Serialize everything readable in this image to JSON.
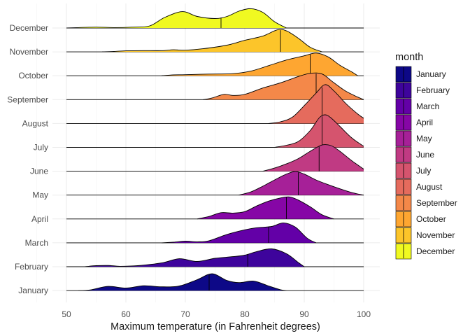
{
  "chart_data": {
    "type": "ridgeline",
    "xlabel": "Maximum temperature (in Fahrenheit degrees)",
    "ylabel": "",
    "xlim": [
      50,
      100
    ],
    "x_ticks": [
      50,
      60,
      70,
      80,
      90,
      100
    ],
    "grid": true,
    "legend": {
      "title": "month",
      "position": "right"
    },
    "series": [
      {
        "name": "January",
        "color": "#0D0887",
        "median": 74,
        "density": [
          [
            52,
            0
          ],
          [
            54,
            0.03
          ],
          [
            57,
            0.2
          ],
          [
            60,
            0.12
          ],
          [
            63,
            0.23
          ],
          [
            66,
            0.18
          ],
          [
            69,
            0.22
          ],
          [
            72,
            0.52
          ],
          [
            74.5,
            0.8
          ],
          [
            77,
            0.48
          ],
          [
            79,
            0.38
          ],
          [
            81.5,
            0.45
          ],
          [
            84,
            0.22
          ],
          [
            86,
            0.04
          ],
          [
            87,
            0
          ]
        ]
      },
      {
        "name": "February",
        "color": "#3E049C",
        "median": 80.5,
        "density": [
          [
            53,
            0
          ],
          [
            55,
            0.05
          ],
          [
            57,
            0.06
          ],
          [
            59,
            0.02
          ],
          [
            62,
            0.05
          ],
          [
            66,
            0.18
          ],
          [
            69,
            0.38
          ],
          [
            72,
            0.25
          ],
          [
            75,
            0.4
          ],
          [
            78,
            0.48
          ],
          [
            80,
            0.55
          ],
          [
            82,
            0.72
          ],
          [
            84.5,
            0.85
          ],
          [
            87,
            0.62
          ],
          [
            89,
            0.2
          ],
          [
            90,
            0
          ]
        ]
      },
      {
        "name": "March",
        "color": "#6300A7",
        "median": 84,
        "density": [
          [
            66,
            0
          ],
          [
            68,
            0.03
          ],
          [
            70,
            0.08
          ],
          [
            72,
            0.05
          ],
          [
            74,
            0.1
          ],
          [
            77,
            0.4
          ],
          [
            80,
            0.62
          ],
          [
            82,
            0.72
          ],
          [
            84.5,
            0.78
          ],
          [
            86.5,
            0.95
          ],
          [
            88.5,
            0.75
          ],
          [
            90.5,
            0.22
          ],
          [
            92,
            0
          ]
        ]
      },
      {
        "name": "April",
        "color": "#8606A6",
        "median": 87,
        "density": [
          [
            72,
            0
          ],
          [
            74,
            0.12
          ],
          [
            76,
            0.3
          ],
          [
            78,
            0.28
          ],
          [
            80,
            0.35
          ],
          [
            82,
            0.62
          ],
          [
            84,
            0.85
          ],
          [
            86,
            1.0
          ],
          [
            87.5,
            1.05
          ],
          [
            89,
            0.9
          ],
          [
            91,
            0.58
          ],
          [
            93,
            0.2
          ],
          [
            95,
            0
          ]
        ]
      },
      {
        "name": "May",
        "color": "#A62098",
        "median": 89,
        "density": [
          [
            79,
            0
          ],
          [
            81,
            0.15
          ],
          [
            83,
            0.42
          ],
          [
            85,
            0.72
          ],
          [
            87,
            1.0
          ],
          [
            88.5,
            1.12
          ],
          [
            90,
            1.0
          ],
          [
            92,
            0.72
          ],
          [
            94,
            0.5
          ],
          [
            96,
            0.3
          ],
          [
            98,
            0.12
          ],
          [
            100,
            0
          ]
        ]
      },
      {
        "name": "June",
        "color": "#C03A83",
        "median": 92.5,
        "density": [
          [
            83,
            0
          ],
          [
            85,
            0.15
          ],
          [
            87,
            0.35
          ],
          [
            89,
            0.6
          ],
          [
            91,
            0.95
          ],
          [
            93,
            1.25
          ],
          [
            94.5,
            1.22
          ],
          [
            96,
            0.95
          ],
          [
            98,
            0.5
          ],
          [
            100,
            0.1
          ]
        ]
      },
      {
        "name": "July",
        "color": "#D5546E",
        "median": 93,
        "density": [
          [
            85,
            0
          ],
          [
            87,
            0.1
          ],
          [
            89,
            0.28
          ],
          [
            91,
            0.8
          ],
          [
            92.5,
            1.4
          ],
          [
            93.5,
            1.55
          ],
          [
            94.5,
            1.4
          ],
          [
            96,
            1.0
          ],
          [
            98,
            0.45
          ],
          [
            100,
            0.05
          ]
        ]
      },
      {
        "name": "August",
        "color": "#E56B5D",
        "median": 93,
        "density": [
          [
            84,
            0
          ],
          [
            86,
            0.08
          ],
          [
            88,
            0.3
          ],
          [
            90,
            0.85
          ],
          [
            92,
            1.45
          ],
          [
            93.5,
            1.85
          ],
          [
            95,
            1.55
          ],
          [
            97,
            0.95
          ],
          [
            99,
            0.45
          ],
          [
            100,
            0.25
          ]
        ]
      },
      {
        "name": "September",
        "color": "#F48849",
        "median": 92,
        "density": [
          [
            73,
            0
          ],
          [
            74.5,
            0.08
          ],
          [
            76.5,
            0.25
          ],
          [
            78,
            0.2
          ],
          [
            80,
            0.25
          ],
          [
            83,
            0.55
          ],
          [
            86,
            0.8
          ],
          [
            89,
            1.1
          ],
          [
            91,
            1.25
          ],
          [
            93,
            1.22
          ],
          [
            95,
            0.8
          ],
          [
            97,
            0.4
          ],
          [
            99,
            0.12
          ],
          [
            100,
            0
          ]
        ]
      },
      {
        "name": "October",
        "color": "#FEA631",
        "median": 91,
        "density": [
          [
            66,
            0
          ],
          [
            68,
            0.04
          ],
          [
            70,
            0.05
          ],
          [
            74,
            0.08
          ],
          [
            78,
            0.1
          ],
          [
            81,
            0.22
          ],
          [
            84,
            0.48
          ],
          [
            87,
            0.75
          ],
          [
            90,
            0.95
          ],
          [
            92,
            1.08
          ],
          [
            94,
            0.9
          ],
          [
            96,
            0.5
          ],
          [
            98,
            0.18
          ],
          [
            99,
            0
          ]
        ]
      },
      {
        "name": "November",
        "color": "#FCC52A",
        "median": 86,
        "density": [
          [
            56,
            0
          ],
          [
            58,
            0.02
          ],
          [
            60,
            0.05
          ],
          [
            63,
            0.06
          ],
          [
            66,
            0.06
          ],
          [
            68,
            0.1
          ],
          [
            70,
            0.08
          ],
          [
            73,
            0.15
          ],
          [
            77,
            0.32
          ],
          [
            80,
            0.55
          ],
          [
            83,
            0.75
          ],
          [
            85.5,
            1.05
          ],
          [
            87,
            1.0
          ],
          [
            89,
            0.65
          ],
          [
            91,
            0.22
          ],
          [
            93,
            0
          ]
        ]
      },
      {
        "name": "December",
        "color": "#F0F921",
        "median": 76,
        "density": [
          [
            50,
            0
          ],
          [
            52,
            0.02
          ],
          [
            55,
            0.04
          ],
          [
            58,
            0.02
          ],
          [
            61,
            0.04
          ],
          [
            64,
            0.1
          ],
          [
            66.5,
            0.5
          ],
          [
            69.5,
            0.78
          ],
          [
            72,
            0.55
          ],
          [
            75,
            0.45
          ],
          [
            77,
            0.55
          ],
          [
            79,
            0.8
          ],
          [
            81,
            0.92
          ],
          [
            83,
            0.75
          ],
          [
            85,
            0.3
          ],
          [
            87,
            0
          ]
        ]
      }
    ]
  }
}
